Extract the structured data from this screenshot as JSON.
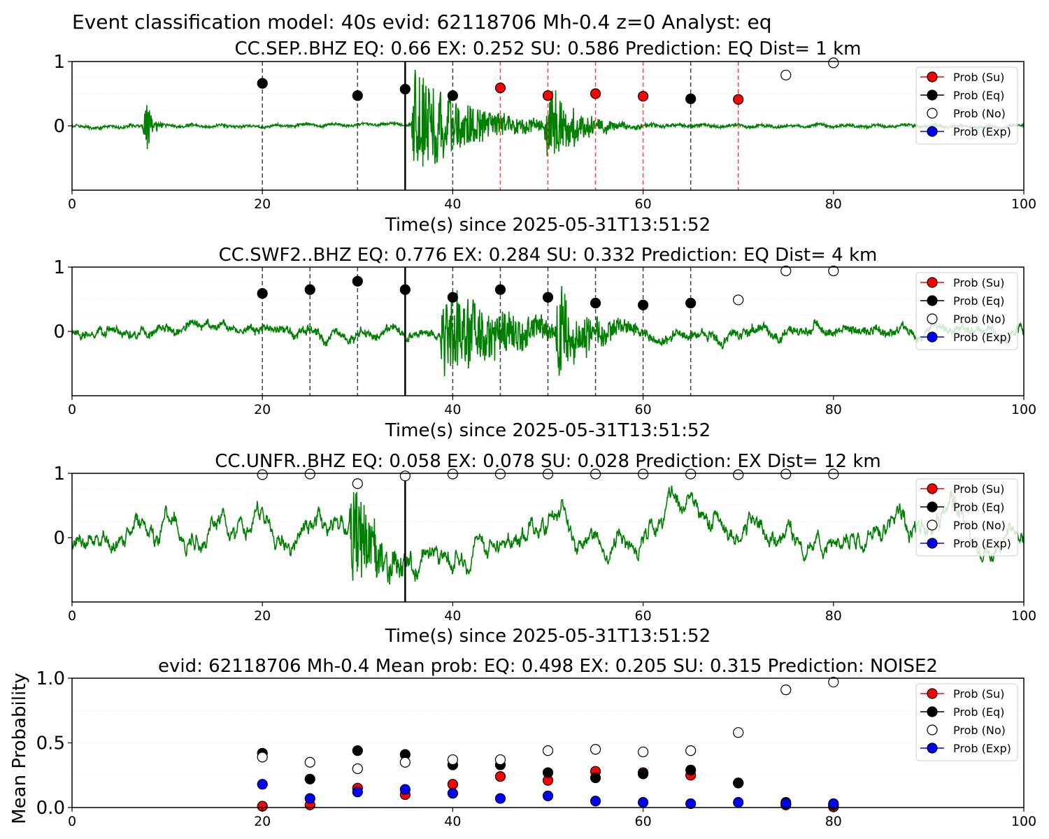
{
  "figure_title": "Event classification model: 40s evid: 62118706 Mh-0.4 z=0 Analyst: eq",
  "legend_entries": [
    "Prob (Su)",
    "Prob (Eq)",
    "Prob (No)",
    "Prob (Exp)"
  ],
  "colors": {
    "su": "#ff0000",
    "eq": "#000000",
    "no": "#ffffff",
    "exp": "#0000ff",
    "waveform": "#008000",
    "analysis_window": "#000000"
  },
  "chart_data": [
    {
      "type": "line",
      "title": "CC.SEP..BHZ   EQ: 0.66  EX: 0.252  SU: 0.586   Prediction: EQ    Dist= 1 km",
      "xlabel": "Time(s) since 2025-05-31T13:51:52",
      "ylabel": "",
      "xlim": [
        0,
        100
      ],
      "ylim": [
        -1,
        1
      ],
      "x_ticks": [
        "0",
        "20",
        "40",
        "60",
        "80",
        "100"
      ],
      "y_ticks": [
        "0",
        "1"
      ],
      "analysis_window_start": 35,
      "window_markers": [
        {
          "x": 20,
          "color": "gray"
        },
        {
          "x": 30,
          "color": "gray"
        },
        {
          "x": 40,
          "color": "gray"
        },
        {
          "x": 45,
          "color": "red"
        },
        {
          "x": 50,
          "color": "red"
        },
        {
          "x": 55,
          "color": "red"
        },
        {
          "x": 60,
          "color": "red"
        },
        {
          "x": 65,
          "color": "gray"
        },
        {
          "x": 70,
          "color": "red"
        }
      ],
      "points": [
        {
          "x": 20,
          "y": 0.66,
          "class": "eq"
        },
        {
          "x": 30,
          "y": 0.47,
          "class": "eq"
        },
        {
          "x": 35,
          "y": 0.57,
          "class": "eq"
        },
        {
          "x": 40,
          "y": 0.47,
          "class": "eq"
        },
        {
          "x": 45,
          "y": 0.59,
          "class": "su"
        },
        {
          "x": 50,
          "y": 0.47,
          "class": "su"
        },
        {
          "x": 55,
          "y": 0.5,
          "class": "su"
        },
        {
          "x": 60,
          "y": 0.46,
          "class": "su"
        },
        {
          "x": 65,
          "y": 0.42,
          "class": "eq"
        },
        {
          "x": 70,
          "y": 0.41,
          "class": "su"
        },
        {
          "x": 75,
          "y": 0.79,
          "class": "no"
        },
        {
          "x": 80,
          "y": 0.98,
          "class": "no"
        }
      ],
      "waveform": {
        "seed": 11,
        "base": 0.05,
        "bursts": [
          [
            7.8,
            0.45,
            0.6
          ],
          [
            36,
            0.85,
            6
          ],
          [
            50,
            0.65,
            3
          ]
        ],
        "lowfreq": 0.02
      }
    },
    {
      "type": "line",
      "title": "CC.SWF2..BHZ   EQ: 0.776  EX: 0.284  SU: 0.332   Prediction: EQ    Dist= 4 km",
      "xlabel": "Time(s) since 2025-05-31T13:51:52",
      "ylabel": "",
      "xlim": [
        0,
        100
      ],
      "ylim": [
        -1,
        1
      ],
      "x_ticks": [
        "0",
        "20",
        "40",
        "60",
        "80",
        "100"
      ],
      "y_ticks": [
        "0",
        "1"
      ],
      "analysis_window_start": 35,
      "window_markers": [
        {
          "x": 20,
          "color": "gray"
        },
        {
          "x": 25,
          "color": "gray"
        },
        {
          "x": 30,
          "color": "gray"
        },
        {
          "x": 40,
          "color": "gray"
        },
        {
          "x": 45,
          "color": "gray"
        },
        {
          "x": 50,
          "color": "gray"
        },
        {
          "x": 55,
          "color": "gray"
        },
        {
          "x": 60,
          "color": "gray"
        },
        {
          "x": 65,
          "color": "gray"
        }
      ],
      "points": [
        {
          "x": 20,
          "y": 0.59,
          "class": "eq"
        },
        {
          "x": 25,
          "y": 0.65,
          "class": "eq"
        },
        {
          "x": 30,
          "y": 0.78,
          "class": "eq"
        },
        {
          "x": 35,
          "y": 0.65,
          "class": "eq"
        },
        {
          "x": 40,
          "y": 0.53,
          "class": "eq"
        },
        {
          "x": 45,
          "y": 0.65,
          "class": "eq"
        },
        {
          "x": 50,
          "y": 0.53,
          "class": "eq"
        },
        {
          "x": 55,
          "y": 0.44,
          "class": "eq"
        },
        {
          "x": 60,
          "y": 0.41,
          "class": "eq"
        },
        {
          "x": 65,
          "y": 0.44,
          "class": "eq"
        },
        {
          "x": 70,
          "y": 0.49,
          "class": "no"
        },
        {
          "x": 75,
          "y": 0.94,
          "class": "no"
        },
        {
          "x": 80,
          "y": 0.94,
          "class": "no"
        }
      ],
      "waveform": {
        "seed": 23,
        "base": 0.12,
        "bursts": [
          [
            39,
            0.75,
            7
          ],
          [
            51,
            0.75,
            3
          ]
        ],
        "lowfreq": 0.14
      }
    },
    {
      "type": "line",
      "title": "CC.UNFR..BHZ   EQ: 0.058  EX: 0.078  SU: 0.028   Prediction: EX    Dist= 12 km",
      "xlabel": "Time(s) since 2025-05-31T13:51:52",
      "ylabel": "",
      "xlim": [
        0,
        100
      ],
      "ylim": [
        -1,
        1
      ],
      "x_ticks": [
        "0",
        "20",
        "40",
        "60",
        "80",
        "100"
      ],
      "y_ticks": [
        "0",
        "1"
      ],
      "analysis_window_start": 35,
      "window_markers": [],
      "points": [
        {
          "x": 20,
          "y": 0.98,
          "class": "no"
        },
        {
          "x": 25,
          "y": 0.99,
          "class": "no"
        },
        {
          "x": 30,
          "y": 0.84,
          "class": "no"
        },
        {
          "x": 35,
          "y": 0.96,
          "class": "no"
        },
        {
          "x": 40,
          "y": 0.99,
          "class": "no"
        },
        {
          "x": 45,
          "y": 0.99,
          "class": "no"
        },
        {
          "x": 50,
          "y": 0.99,
          "class": "no"
        },
        {
          "x": 55,
          "y": 0.99,
          "class": "no"
        },
        {
          "x": 60,
          "y": 0.99,
          "class": "no"
        },
        {
          "x": 65,
          "y": 0.99,
          "class": "no"
        },
        {
          "x": 70,
          "y": 0.98,
          "class": "no"
        },
        {
          "x": 75,
          "y": 0.99,
          "class": "no"
        },
        {
          "x": 80,
          "y": 0.99,
          "class": "no"
        }
      ],
      "waveform": {
        "seed": 37,
        "base": 0.08,
        "bursts": [
          [
            29.5,
            0.9,
            2.5
          ]
        ],
        "lowfreq": 0.42
      }
    },
    {
      "type": "scatter",
      "title": "evid: 62118706  Mh-0.4   Mean prob:   EQ: 0.498  EX: 0.205  SU: 0.315   Prediction: NOISE2",
      "xlabel": "",
      "ylabel": "Mean Probability",
      "xlim": [
        0,
        100
      ],
      "ylim": [
        0,
        1
      ],
      "x_ticks": [
        "0",
        "20",
        "40",
        "60",
        "80",
        "100"
      ],
      "y_ticks": [
        "0.0",
        "0.5",
        "1.0"
      ],
      "x": [
        20,
        25,
        30,
        35,
        40,
        45,
        50,
        55,
        60,
        65,
        70,
        75,
        80
      ],
      "series": [
        {
          "name": "Prob (Su)",
          "class": "su",
          "values": [
            0.01,
            0.02,
            0.15,
            0.1,
            0.18,
            0.24,
            0.21,
            0.28,
            0.27,
            0.25,
            0.19,
            0.02,
            0.0
          ]
        },
        {
          "name": "Prob (Eq)",
          "class": "eq",
          "values": [
            0.42,
            0.22,
            0.44,
            0.41,
            0.33,
            0.33,
            0.27,
            0.23,
            0.26,
            0.29,
            0.19,
            0.04,
            0.02
          ]
        },
        {
          "name": "Prob (No)",
          "class": "no",
          "values": [
            0.39,
            0.35,
            0.3,
            0.35,
            0.37,
            0.37,
            0.44,
            0.45,
            0.43,
            0.44,
            0.58,
            0.91,
            0.97
          ]
        },
        {
          "name": "Prob (Exp)",
          "class": "exp",
          "values": [
            0.18,
            0.07,
            0.12,
            0.14,
            0.11,
            0.07,
            0.09,
            0.05,
            0.04,
            0.03,
            0.04,
            0.03,
            0.03
          ]
        }
      ]
    }
  ]
}
